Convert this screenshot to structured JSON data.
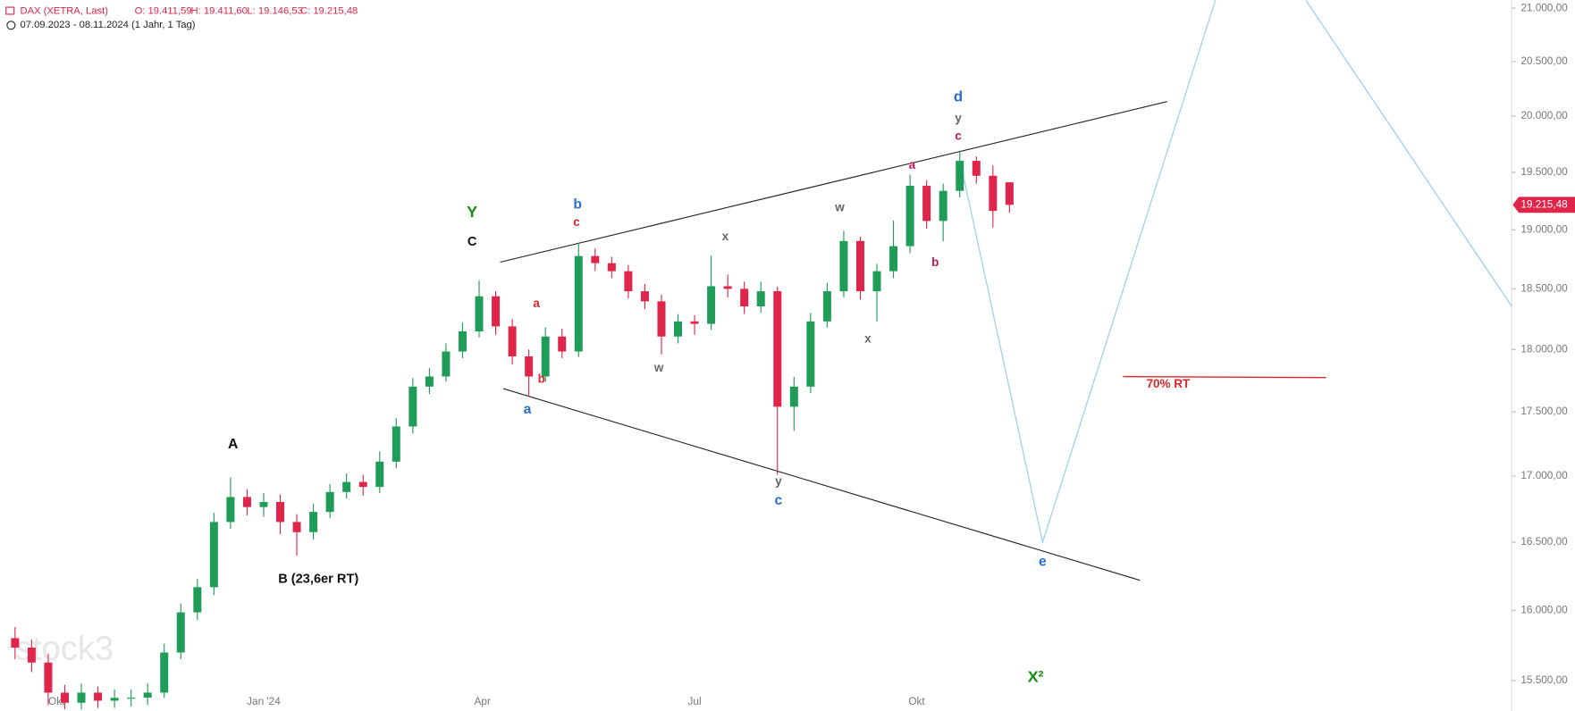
{
  "chart_data": {
    "type": "candlestick",
    "title": "DAX (XETRA, Last)",
    "ohlc_labels": [
      "O: 19.411,59",
      "H: 19.411,60",
      "L: 19.146,53",
      "C: 19.215,48"
    ],
    "subtitle": "07.09.2023 - 08.11.2024  (1 Jahr, 1 Tag)",
    "watermark": "stock3",
    "last_price_label": "19.215,48",
    "log_scale": true,
    "up_color": "#1f9d58",
    "down_color": "#e0254a",
    "ylim": [
      15290,
      21076
    ],
    "yticks": [
      {
        "value": 15500,
        "label": "15.500,00"
      },
      {
        "value": 16000,
        "label": "16.000,00"
      },
      {
        "value": 16500,
        "label": "16.500,00"
      },
      {
        "value": 17000,
        "label": "17.000,00"
      },
      {
        "value": 17500,
        "label": "17.500,00"
      },
      {
        "value": 18000,
        "label": "18.000,00"
      },
      {
        "value": 18500,
        "label": "18.500,00"
      },
      {
        "value": 19000,
        "label": "19.000,00"
      },
      {
        "value": 19500,
        "label": "19.500,00"
      },
      {
        "value": 20000,
        "label": "20.000,00"
      },
      {
        "value": 20500,
        "label": "20.500,00"
      },
      {
        "value": 21000,
        "label": "21.000,00"
      }
    ],
    "xticks": [
      {
        "value": 2.5,
        "label": "Okt"
      },
      {
        "value": 15,
        "label": "Jan '24"
      },
      {
        "value": 28.2,
        "label": "Apr"
      },
      {
        "value": 41,
        "label": "Jul"
      },
      {
        "value": 54.4,
        "label": "Okt"
      }
    ],
    "open": [
      15800,
      15733,
      15627,
      15416,
      15346,
      15416,
      15360,
      15380,
      15381,
      15416,
      15698,
      15985,
      16168,
      16651,
      16840,
      16764,
      16802,
      16651,
      16575,
      16727,
      16878,
      16955,
      16917,
      17111,
      17385,
      17701,
      17782,
      17984,
      18148,
      18438,
      18189,
      17944,
      17782,
      18106,
      17984,
      18776,
      18716,
      18648,
      18480,
      18396,
      18106,
      18230,
      18210,
      18522,
      18500,
      18354,
      18480,
      17541,
      17701,
      18230,
      18480,
      18904,
      18480,
      18648,
      18860,
      19381,
      19076,
      19337,
      19601,
      19469,
      19411.59
    ],
    "high": [
      15880,
      15790,
      15690,
      15470,
      15480,
      15460,
      15440,
      15440,
      15480,
      15760,
      16050,
      16230,
      16720,
      16990,
      16900,
      16870,
      16860,
      16710,
      16790,
      16940,
      17020,
      17010,
      17190,
      17450,
      17770,
      17850,
      18050,
      18220,
      18570,
      18480,
      18250,
      18000,
      18180,
      18170,
      18890,
      18840,
      18770,
      18700,
      18540,
      18450,
      18290,
      18280,
      18780,
      18620,
      18560,
      18560,
      18520,
      17780,
      18300,
      18550,
      18990,
      18940,
      18710,
      19080,
      19480,
      19430,
      19400,
      19680,
      19640,
      19560,
      19411.6
    ],
    "low": [
      15650,
      15560,
      15330,
      15300,
      15300,
      15310,
      15310,
      15320,
      15330,
      15380,
      15650,
      15930,
      16110,
      16600,
      16700,
      16690,
      16560,
      16400,
      16520,
      16680,
      16830,
      16850,
      16870,
      17060,
      17330,
      17640,
      17740,
      17930,
      18100,
      18120,
      17880,
      17620,
      17740,
      17930,
      17940,
      18650,
      18590,
      18420,
      18330,
      17960,
      18050,
      18120,
      18160,
      18430,
      18290,
      18300,
      17010,
      17350,
      17650,
      18180,
      18430,
      18410,
      18230,
      18590,
      18800,
      19010,
      18900,
      19280,
      19400,
      19020,
      19146.53
    ],
    "close": [
      15733,
      15627,
      15416,
      15346,
      15416,
      15360,
      15380,
      15381,
      15416,
      15698,
      15985,
      16168,
      16651,
      16840,
      16764,
      16802,
      16651,
      16575,
      16727,
      16878,
      16955,
      16917,
      17111,
      17385,
      17701,
      17782,
      17984,
      18148,
      18438,
      18189,
      17944,
      17782,
      18106,
      17984,
      18776,
      18716,
      18648,
      18480,
      18396,
      18106,
      18230,
      18210,
      18522,
      18500,
      18354,
      18480,
      17541,
      17701,
      18230,
      18480,
      18904,
      18480,
      18648,
      18860,
      19381,
      19076,
      19337,
      19601,
      19469,
      19163,
      19215.48
    ],
    "annotations": [
      {
        "text": "Y",
        "color": "#1a8c1a"
      },
      {
        "text": "C",
        "color": "#111111"
      },
      {
        "text": "b",
        "color": "#2a6fcf"
      },
      {
        "text": "c",
        "color": "#e0252a"
      },
      {
        "text": "a",
        "color": "#e0252a"
      },
      {
        "text": "b",
        "color": "#e0252a"
      },
      {
        "text": "a",
        "color": "#2a6fcf"
      },
      {
        "text": "x",
        "color": "#666666"
      },
      {
        "text": "w",
        "color": "#666666"
      },
      {
        "text": "y",
        "color": "#666666"
      },
      {
        "text": "c",
        "color": "#2a6fcf"
      },
      {
        "text": "w",
        "color": "#666666"
      },
      {
        "text": "x",
        "color": "#666666"
      },
      {
        "text": "a",
        "color": "#c2185b"
      },
      {
        "text": "b",
        "color": "#c2185b"
      },
      {
        "text": "d",
        "color": "#2a6fcf"
      },
      {
        "text": "y",
        "color": "#666666"
      },
      {
        "text": "c",
        "color": "#c2185b"
      },
      {
        "text": "A",
        "color": "#111111"
      },
      {
        "text": "B (23,6er RT)",
        "color": "#111111"
      },
      {
        "text": "e",
        "color": "#2a6fcf"
      },
      {
        "text": "X²",
        "color": "#1a8c1a"
      },
      {
        "text": "70% RT",
        "color": "#e0252a"
      }
    ]
  }
}
